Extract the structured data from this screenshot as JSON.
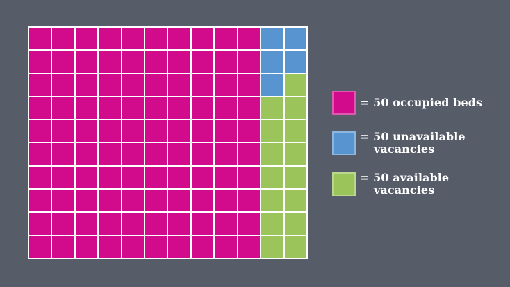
{
  "colors": {
    "background": "#575C69",
    "gridline": "#FFFFFF",
    "occupied": "#D20B8C",
    "unavailable": "#5794D0",
    "available": "#9BC45A",
    "legend_text": "#FFFFFF"
  },
  "legend": {
    "items": [
      {
        "key": "P",
        "line1": "= 50 occupied beds",
        "line2": ""
      },
      {
        "key": "B",
        "line1": "= 50 unavailable",
        "line2": "vacancies"
      },
      {
        "key": "G",
        "line1": "= 50 available",
        "line2": "vacancies"
      }
    ]
  },
  "chart_data": {
    "type": "waffle",
    "rows": 10,
    "cols": 12,
    "unit_per_square": 50,
    "unit_label": "beds",
    "total_squares": 120,
    "total_value": 6000,
    "grid": [
      "PPPPPPPPPPBB",
      "PPPPPPPPPPBB",
      "PPPPPPPPPPBG",
      "PPPPPPPPPPGG",
      "PPPPPPPPPPGG",
      "PPPPPPPPPPGG",
      "PPPPPPPPPPGG",
      "PPPPPPPPPPGG",
      "PPPPPPPPPPGG",
      "PPPPPPPPPPGG"
    ],
    "series": [
      {
        "name": "occupied beds",
        "key": "P",
        "squares": 100,
        "value": 5000,
        "color": "#D20B8C"
      },
      {
        "name": "unavailable vacancies",
        "key": "B",
        "squares": 5,
        "value": 250,
        "color": "#5794D0"
      },
      {
        "name": "available vacancies",
        "key": "G",
        "squares": 15,
        "value": 750,
        "color": "#9BC45A"
      }
    ],
    "legend_position": "right"
  }
}
